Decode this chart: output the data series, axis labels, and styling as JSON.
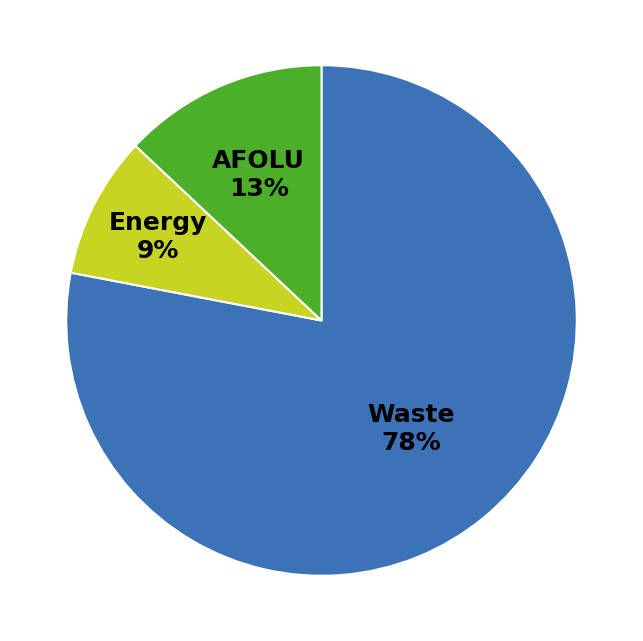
{
  "labels": [
    "Waste",
    "Energy",
    "AFOLU"
  ],
  "values": [
    78,
    9,
    13
  ],
  "colors": [
    "#3b72b8",
    "#c8d422",
    "#4caf2a"
  ],
  "label_fontsize": 18,
  "startangle": 90,
  "background_color": "#ffffff",
  "wedge_linewidth": 1.5,
  "wedge_linecolor": "#ffffff",
  "label_radii": [
    0.55,
    0.72,
    0.62
  ],
  "label_texts": [
    "Waste\n78%",
    "Energy\n9%",
    "AFOLU\n13%"
  ]
}
